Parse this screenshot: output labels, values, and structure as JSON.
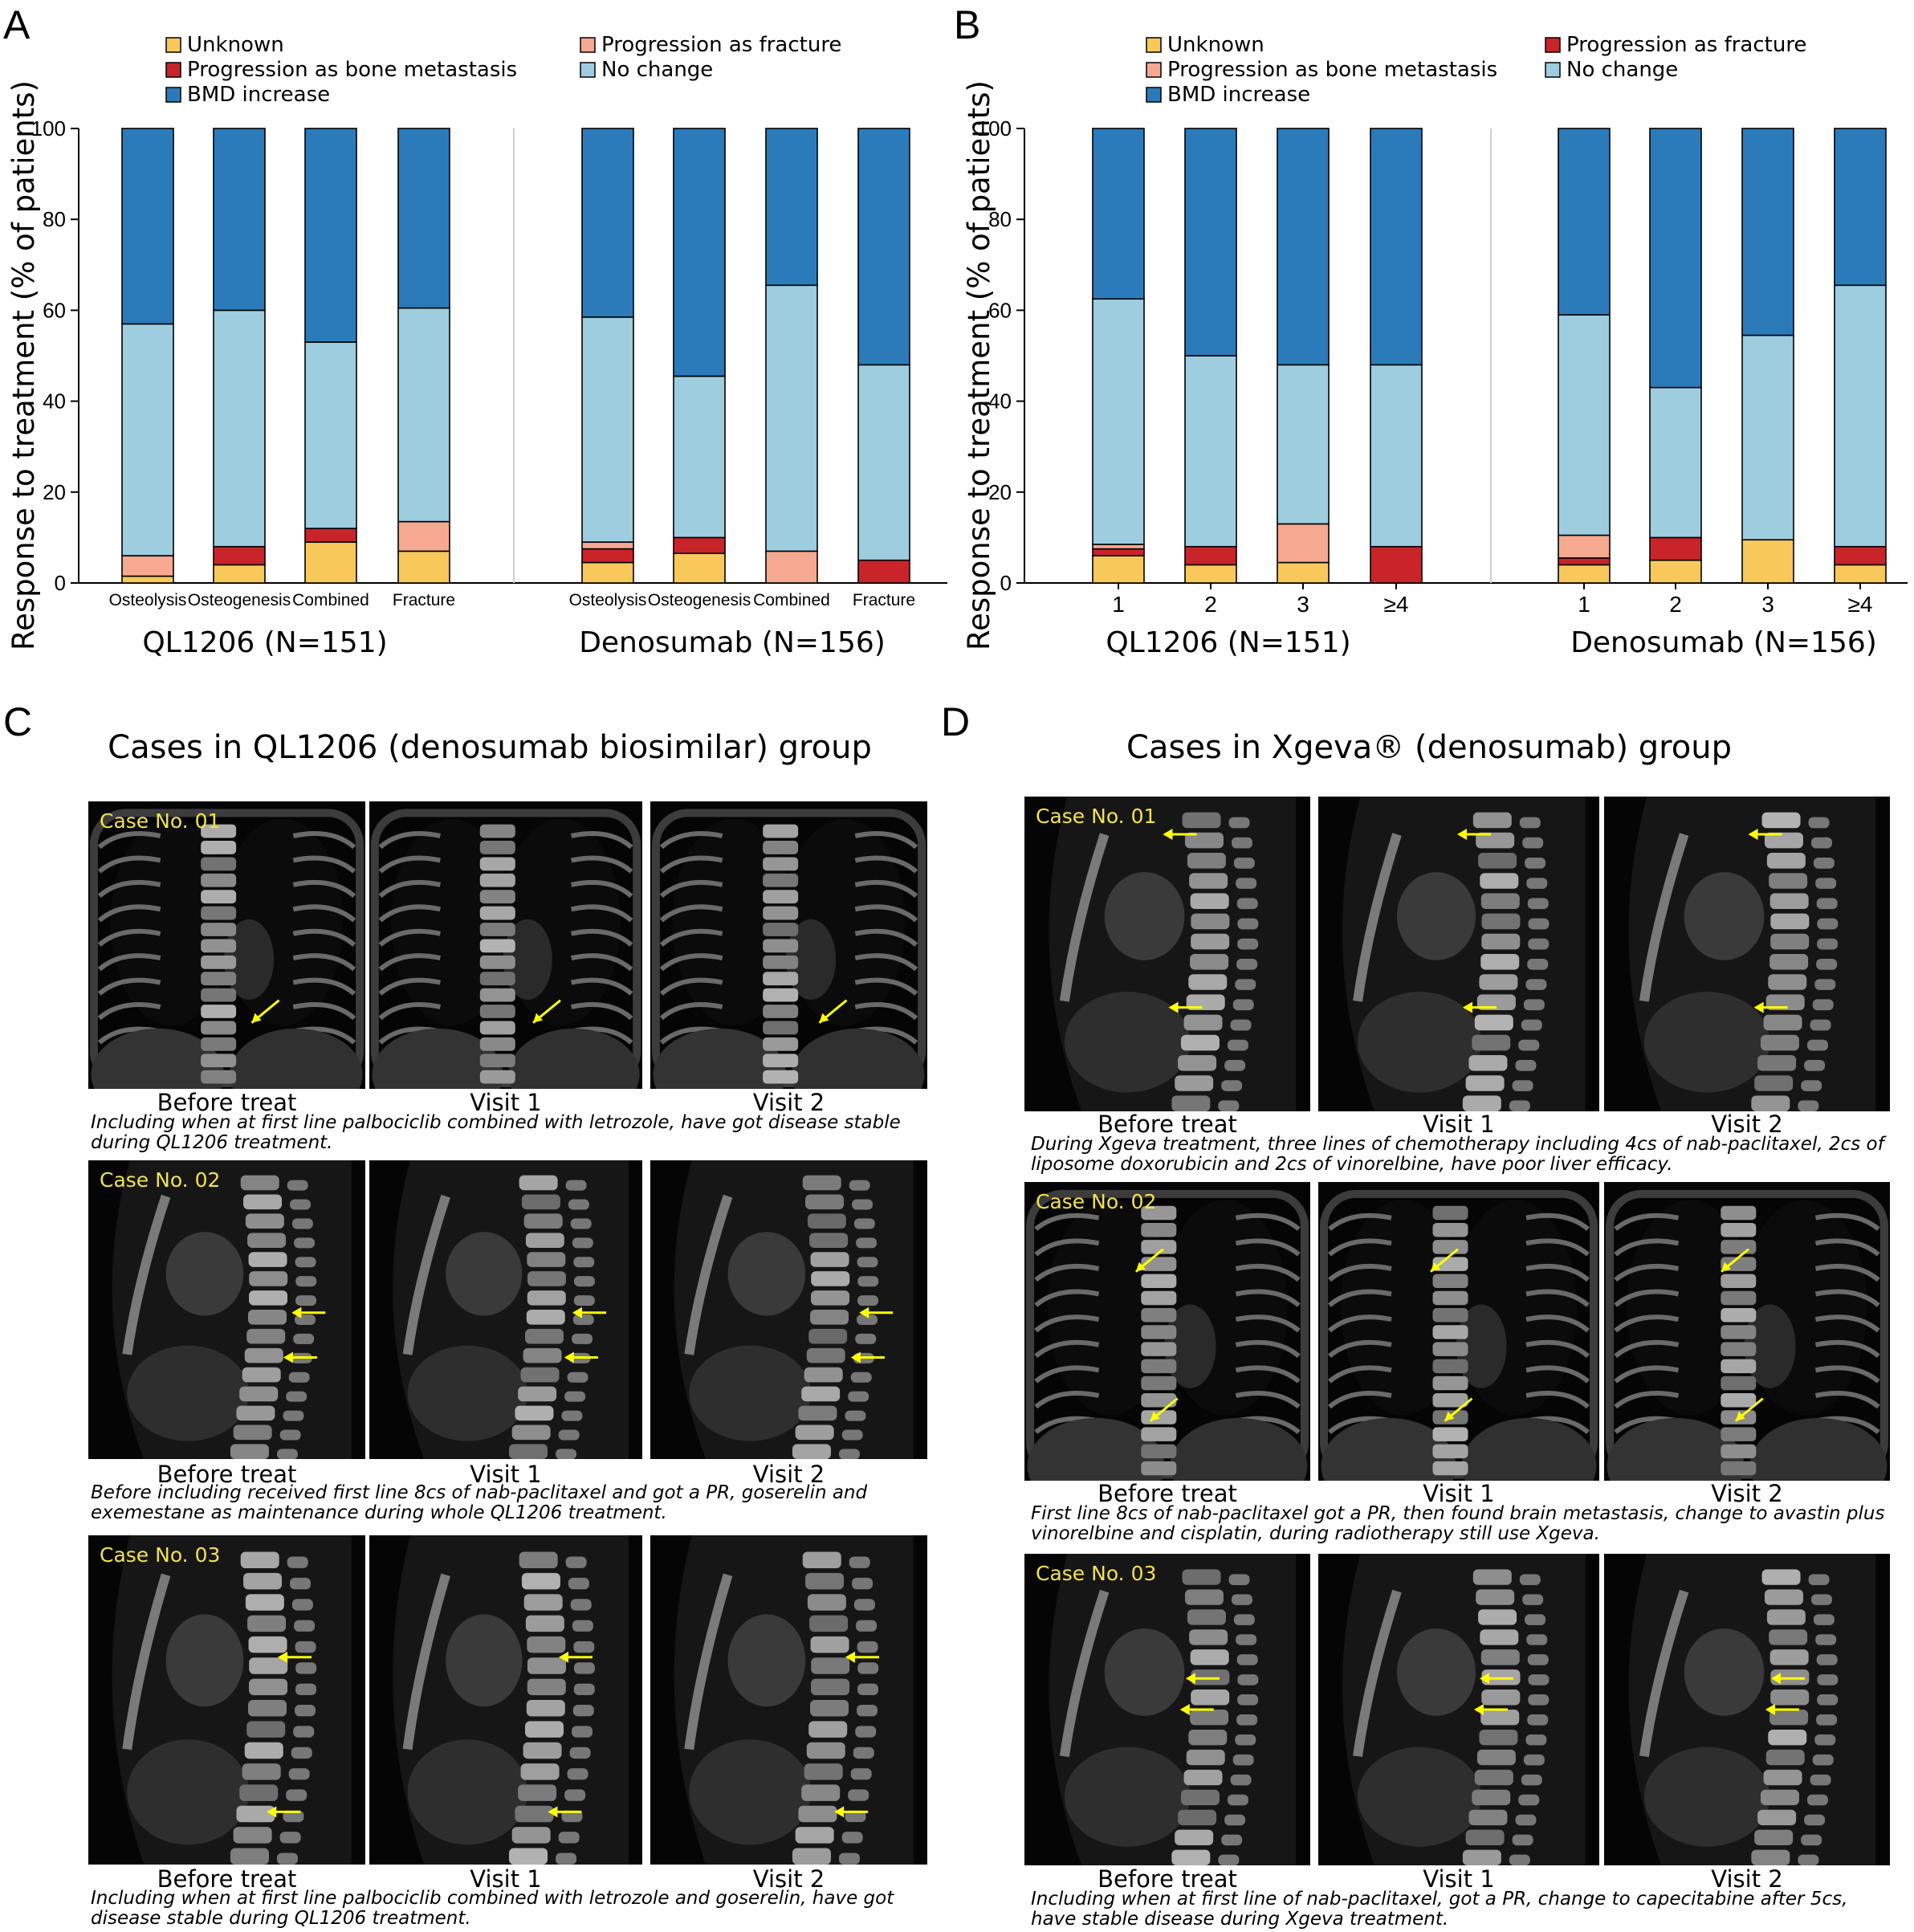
{
  "panel_letters": {
    "A": "A",
    "B": "B",
    "C": "C",
    "D": "D"
  },
  "colors": {
    "unknown": "#f9c85b",
    "progression_bone_metastasis": "#c8242a",
    "progression_fracture": "#f4a990",
    "no_change": "#9ecde0",
    "bmd_increase": "#2b7bbb"
  },
  "chart_data": [
    {
      "panel": "A",
      "type": "bar",
      "stacked": true,
      "ylabel": "Response to treatment (% of patients)",
      "ylim": [
        0,
        100
      ],
      "yticks": [
        0,
        20,
        40,
        60,
        80,
        100
      ],
      "legend": [
        {
          "key": "unknown",
          "label": "Unknown"
        },
        {
          "key": "progression_fracture",
          "label": "Progression as fracture"
        },
        {
          "key": "progression_bone_metastasis",
          "label": "Progression as bone metastasis"
        },
        {
          "key": "no_change",
          "label": "No change"
        },
        {
          "key": "bmd_increase",
          "label": "BMD increase"
        }
      ],
      "groups": [
        {
          "name": "QL1206 (N=151)",
          "categories": [
            "Osteolysis",
            "Osteogenesis",
            "Combined",
            "Fracture"
          ]
        },
        {
          "name": "Denosumab (N=156)",
          "categories": [
            "Osteolysis",
            "Osteogenesis",
            "Combined",
            "Fracture"
          ]
        }
      ],
      "stack_order": [
        "unknown",
        "progression_bone_metastasis",
        "progression_fracture",
        "no_change",
        "bmd_increase"
      ],
      "series": [
        {
          "key": "unknown",
          "name": "Unknown",
          "values": [
            1.5,
            4,
            9,
            7,
            4.5,
            6.5,
            0,
            0
          ]
        },
        {
          "key": "progression_bone_metastasis",
          "name": "Progression as bone metastasis",
          "values": [
            0,
            4,
            3,
            0,
            3,
            3.5,
            0,
            5
          ]
        },
        {
          "key": "progression_fracture",
          "name": "Progression as fracture",
          "values": [
            4.5,
            0,
            0,
            6.5,
            1.5,
            0,
            7,
            0
          ]
        },
        {
          "key": "no_change",
          "name": "No change",
          "values": [
            51,
            52,
            41,
            47,
            49.5,
            35.5,
            58.5,
            43
          ]
        },
        {
          "key": "bmd_increase",
          "name": "BMD increase",
          "values": [
            43,
            40,
            47,
            39.5,
            41.5,
            54.5,
            34.5,
            52
          ]
        }
      ]
    },
    {
      "panel": "B",
      "type": "bar",
      "stacked": true,
      "ylabel": "Response to treatment (% of patients)",
      "ylim": [
        0,
        100
      ],
      "yticks": [
        0,
        20,
        40,
        60,
        80,
        100
      ],
      "legend": [
        {
          "key": "unknown",
          "label": "Unknown"
        },
        {
          "key": "progression_bone_metastasis",
          "label": "Progression as fracture"
        },
        {
          "key": "progression_fracture",
          "label": "Progression as bone metastasis"
        },
        {
          "key": "no_change",
          "label": "No change"
        },
        {
          "key": "bmd_increase",
          "label": "BMD increase"
        }
      ],
      "groups": [
        {
          "name": "QL1206 (N=151)",
          "categories": [
            "1",
            "2",
            "3",
            "≥4"
          ]
        },
        {
          "name": "Denosumab (N=156)",
          "categories": [
            "1",
            "2",
            "3",
            "≥4"
          ]
        }
      ],
      "stack_order": [
        "unknown",
        "progression_bone_metastasis",
        "progression_fracture",
        "no_change",
        "bmd_increase"
      ],
      "series": [
        {
          "key": "unknown",
          "name": "Unknown",
          "values": [
            6,
            4,
            4.5,
            0,
            4,
            5,
            9.5,
            4
          ]
        },
        {
          "key": "progression_bone_metastasis",
          "name": "Progression as fracture",
          "values": [
            1.5,
            4,
            0,
            8,
            1.5,
            5,
            0,
            4
          ]
        },
        {
          "key": "progression_fracture",
          "name": "Progression as bone metastasis",
          "values": [
            1,
            0,
            8.5,
            0,
            5,
            0,
            0,
            0
          ]
        },
        {
          "key": "no_change",
          "name": "No change",
          "values": [
            54,
            42,
            35,
            40,
            48.5,
            33,
            45,
            57.5
          ]
        },
        {
          "key": "bmd_increase",
          "name": "BMD increase",
          "values": [
            37.5,
            50,
            52,
            52,
            41,
            57,
            45.5,
            34.5
          ]
        }
      ]
    }
  ],
  "section_c": {
    "title": "Cases in QL1206 (denosumab biosimilar) group",
    "captions": [
      "Before treat",
      "Visit 1",
      "Visit 2"
    ],
    "cases": [
      {
        "label": "Case No. 01",
        "desc_line1": "Including when at first line palbociclib combined with letrozole, have got disease stable",
        "desc_line2": "during QL1206 treatment."
      },
      {
        "label": "Case No. 02",
        "desc_line1": "Before including received first line 8cs of nab-paclitaxel and got a PR, goserelin and",
        "desc_line2": "exemestane as maintenance during whole QL1206 treatment."
      },
      {
        "label": "Case No. 03",
        "desc_line1": "Including when at first line palbociclib combined with letrozole and goserelin, have got",
        "desc_line2": "disease stable during QL1206 treatment."
      }
    ]
  },
  "section_d": {
    "title": "Cases in Xgeva® (denosumab) group",
    "captions": [
      "Before treat",
      "Visit 1",
      "Visit 2"
    ],
    "cases": [
      {
        "label": "Case No. 01",
        "desc_line1": "During Xgeva treatment, three lines of chemotherapy including 4cs of nab-paclitaxel, 2cs of",
        "desc_line2": "liposome doxorubicin and 2cs of vinorelbine, have poor liver efficacy."
      },
      {
        "label": "Case No. 02",
        "desc_line1": "First line 8cs of nab-paclitaxel got a PR, then found brain metastasis, change to avastin plus",
        "desc_line2": "vinorelbine and cisplatin, during radiotherapy still use Xgeva."
      },
      {
        "label": "Case No. 03",
        "desc_line1": "Including when at first line of nab-paclitaxel, got a PR, change to capecitabine after 5cs,",
        "desc_line2": "have stable disease during Xgeva treatment."
      }
    ]
  }
}
